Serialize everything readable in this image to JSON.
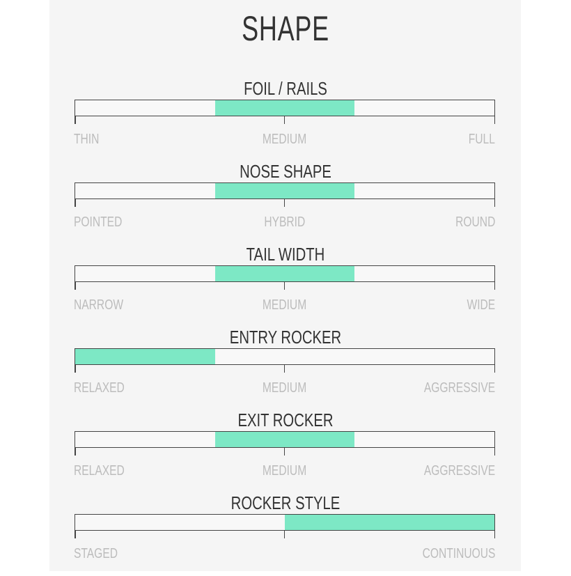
{
  "title": "SHAPE",
  "accent": "#7de8c5",
  "scales": [
    {
      "title": "FOIL / RAILS",
      "labels": [
        "THIN",
        "MEDIUM",
        "FULL"
      ],
      "fill": [
        0.3333,
        0.6667
      ]
    },
    {
      "title": "NOSE SHAPE",
      "labels": [
        "POINTED",
        "HYBRID",
        "ROUND"
      ],
      "fill": [
        0.3333,
        0.6667
      ]
    },
    {
      "title": "TAIL WIDTH",
      "labels": [
        "NARROW",
        "MEDIUM",
        "WIDE"
      ],
      "fill": [
        0.3333,
        0.6667
      ]
    },
    {
      "title": "ENTRY ROCKER",
      "labels": [
        "RELAXED",
        "MEDIUM",
        "AGGRESSIVE"
      ],
      "fill": [
        0,
        0.3333
      ]
    },
    {
      "title": "EXIT ROCKER",
      "labels": [
        "RELAXED",
        "MEDIUM",
        "AGGRESSIVE"
      ],
      "fill": [
        0.3333,
        0.6667
      ]
    },
    {
      "title": "ROCKER STYLE",
      "labels": [
        "STAGED",
        "CONTINUOUS"
      ],
      "fill": [
        0.5,
        1
      ]
    }
  ]
}
